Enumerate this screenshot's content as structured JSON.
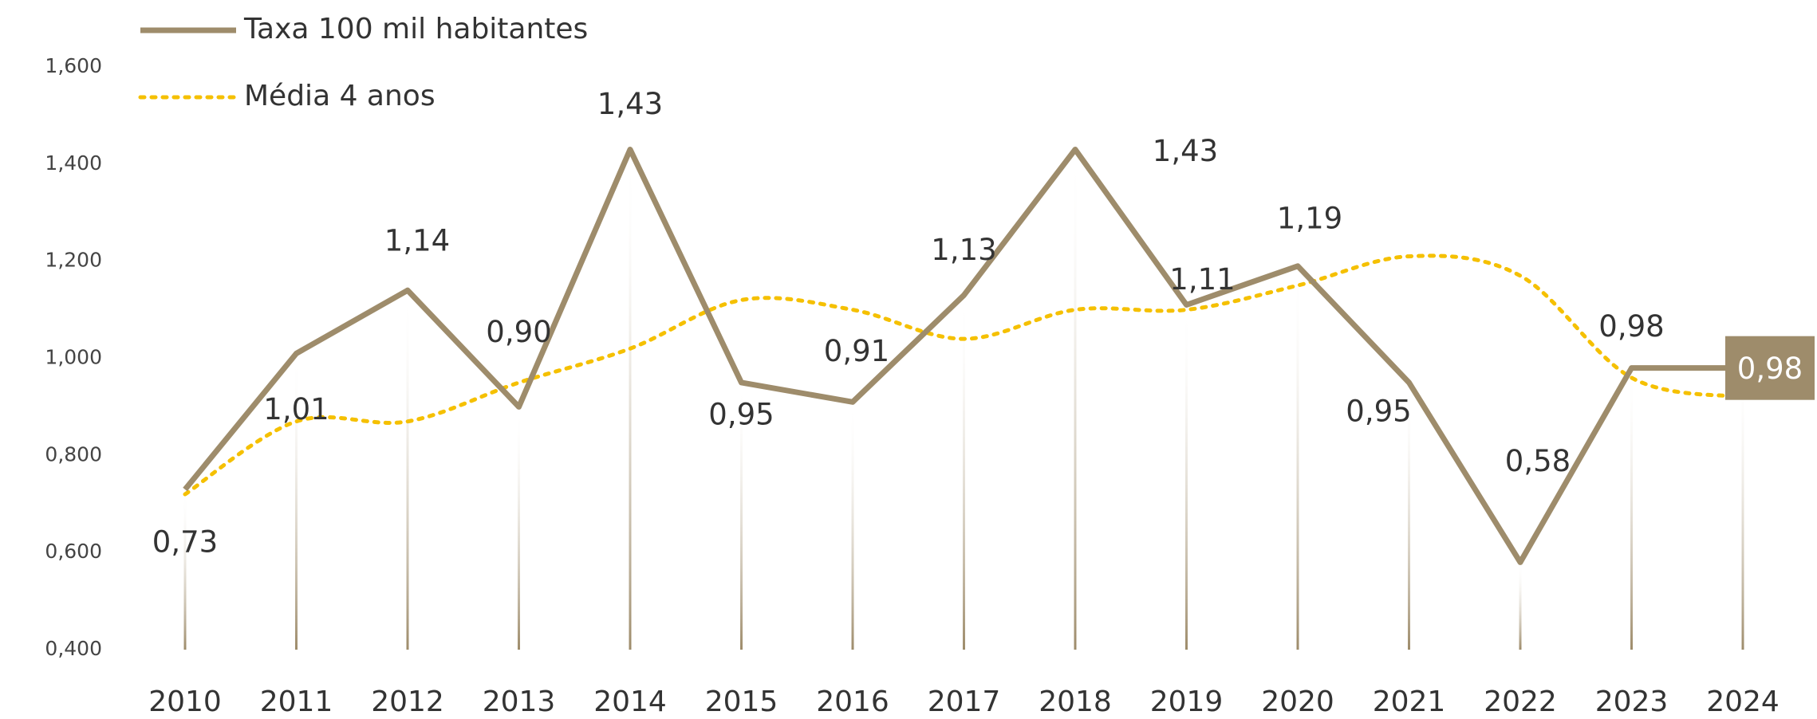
{
  "chart_data": {
    "type": "line",
    "categories": [
      "2010",
      "2011",
      "2012",
      "2013",
      "2014",
      "2015",
      "2016",
      "2017",
      "2018",
      "2019",
      "2020",
      "2021",
      "2022",
      "2023",
      "2024"
    ],
    "series": [
      {
        "name": "Taxa 100 mil habitantes",
        "color": "#9e8c6b",
        "values": [
          0.73,
          1.01,
          1.14,
          0.9,
          1.43,
          0.95,
          0.91,
          1.13,
          1.43,
          1.11,
          1.19,
          0.95,
          0.58,
          0.98,
          0.98
        ],
        "value_labels": [
          "0,73",
          "1,01",
          "1,14",
          "0,90",
          "1,43",
          "0,95",
          "0,91",
          "1,13",
          "1,43",
          "1,11",
          "1,19",
          "0,95",
          "0,58",
          "0,98",
          "0,98"
        ]
      },
      {
        "name": "Média 4 anos",
        "color": "#f5c000",
        "values": [
          0.72,
          0.87,
          0.87,
          0.95,
          1.02,
          1.12,
          1.1,
          1.04,
          1.1,
          1.1,
          1.15,
          1.21,
          1.17,
          0.96,
          0.92
        ]
      }
    ],
    "ylim": [
      0.4,
      1.6
    ],
    "yticks": [
      {
        "value": 0.4,
        "label": "0,400"
      },
      {
        "value": 0.6,
        "label": "0,600"
      },
      {
        "value": 0.8,
        "label": "0,800"
      },
      {
        "value": 1.0,
        "label": "1,000"
      },
      {
        "value": 1.2,
        "label": "1,200"
      },
      {
        "value": 1.4,
        "label": "1,400"
      },
      {
        "value": 1.6,
        "label": "1,600"
      }
    ],
    "grid": false,
    "legend": "top-left"
  }
}
